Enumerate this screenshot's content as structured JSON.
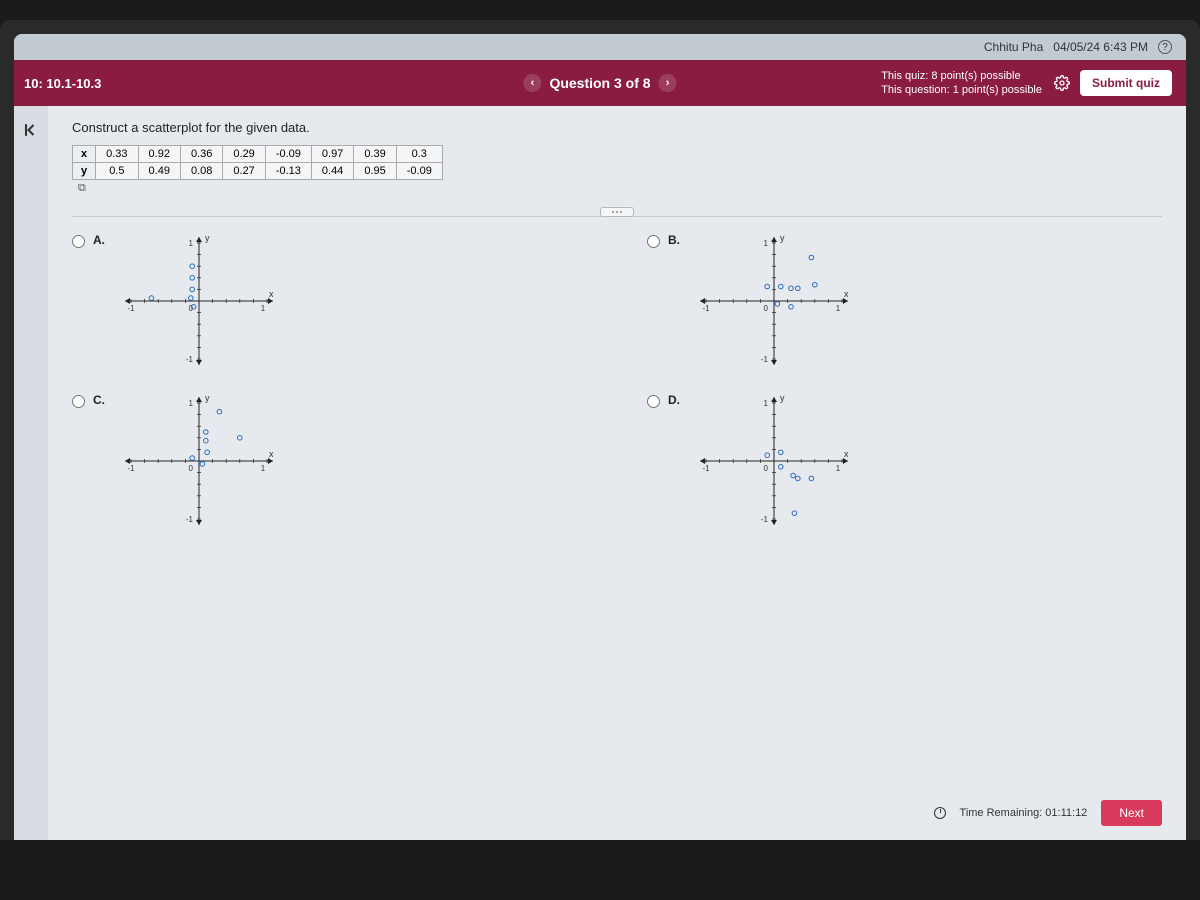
{
  "header": {
    "user_name": "Chhitu Pha",
    "datetime": "04/05/24 6:43 PM",
    "help_icon": "?"
  },
  "purple_bar": {
    "section": "10: 10.1-10.3",
    "question_label": "Question 3 of 8",
    "quiz_line1": "This quiz: 8 point(s) possible",
    "quiz_line2": "This question: 1 point(s) possible",
    "submit_label": "Submit quiz"
  },
  "question": {
    "prompt": "Construct a scatterplot for the given data.",
    "row_x_label": "x",
    "row_y_label": "y",
    "x_vals": [
      "0.33",
      "0.92",
      "0.36",
      "0.29",
      "-0.09",
      "0.97",
      "0.39",
      "0.3"
    ],
    "y_vals": [
      "0.5",
      "0.49",
      "0.08",
      "0.27",
      "-0.13",
      "0.44",
      "0.95",
      "-0.09"
    ]
  },
  "options": {
    "A": {
      "label": "A."
    },
    "B": {
      "label": "B."
    },
    "C": {
      "label": "C."
    },
    "D": {
      "label": "D."
    }
  },
  "scatter": {
    "type": "scatter",
    "grid_color": "#888",
    "point_color": "#2a6bbf",
    "point_radius": 2.3,
    "axis_color": "#222",
    "tick_step": 0.2,
    "xlim": [
      -1,
      1
    ],
    "ylim": [
      -1,
      1
    ],
    "x_label": "x",
    "y_label": "y",
    "axis_ticks_minus1": "-1",
    "axis_ticks_plus1": "1",
    "axis_tick_zero": "0",
    "A_points": [
      {
        "x": -0.7,
        "y": 0.05
      },
      {
        "x": -0.1,
        "y": 0.6
      },
      {
        "x": -0.1,
        "y": 0.4
      },
      {
        "x": -0.1,
        "y": 0.2
      },
      {
        "x": -0.12,
        "y": 0.05
      },
      {
        "x": -0.08,
        "y": -0.1
      }
    ],
    "B_points": [
      {
        "x": 0.55,
        "y": 0.75
      },
      {
        "x": 0.1,
        "y": 0.25
      },
      {
        "x": 0.25,
        "y": 0.22
      },
      {
        "x": 0.35,
        "y": 0.22
      },
      {
        "x": 0.6,
        "y": 0.28
      },
      {
        "x": -0.1,
        "y": 0.25
      },
      {
        "x": 0.05,
        "y": -0.05
      },
      {
        "x": 0.25,
        "y": -0.1
      }
    ],
    "C_points": [
      {
        "x": 0.3,
        "y": 0.85
      },
      {
        "x": 0.1,
        "y": 0.5
      },
      {
        "x": 0.1,
        "y": 0.35
      },
      {
        "x": 0.12,
        "y": 0.15
      },
      {
        "x": 0.05,
        "y": -0.05
      },
      {
        "x": -0.1,
        "y": 0.05
      },
      {
        "x": 0.6,
        "y": 0.4
      }
    ],
    "D_points": [
      {
        "x": 0.1,
        "y": 0.15
      },
      {
        "x": -0.1,
        "y": 0.1
      },
      {
        "x": 0.1,
        "y": -0.1
      },
      {
        "x": 0.28,
        "y": -0.25
      },
      {
        "x": 0.35,
        "y": -0.3
      },
      {
        "x": 0.55,
        "y": -0.3
      },
      {
        "x": 0.3,
        "y": -0.9
      }
    ]
  },
  "footer": {
    "time_label": "Time Remaining: 01:11:12",
    "next_label": "Next"
  }
}
